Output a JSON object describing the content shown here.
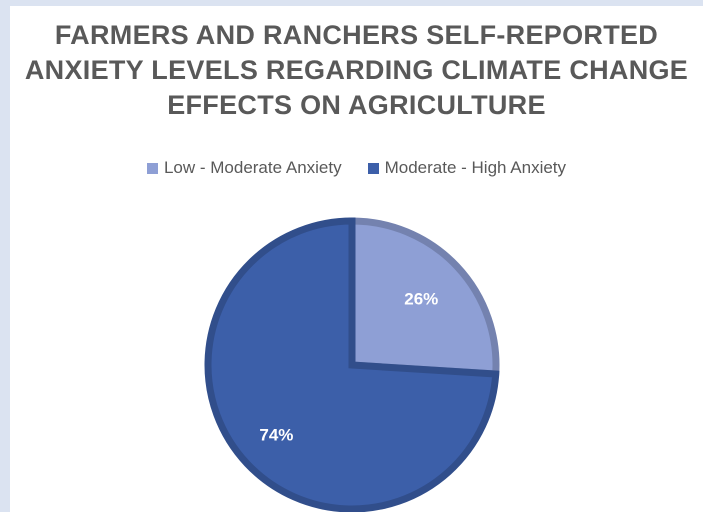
{
  "chart_data": {
    "type": "pie",
    "title_lines": [
      "FARMERS AND RANCHERS SELF-REPORTED",
      "ANXIETY LEVELS REGARDING CLIMATE CHANGE",
      "EFFECTS ON AGRICULTURE"
    ],
    "legend_position": "top",
    "slices": [
      {
        "name": "Low - Moderate Anxiety",
        "value": 26,
        "label": "26%",
        "color": "#8e9fd5"
      },
      {
        "name": "Moderate - High Anxiety",
        "value": 74,
        "label": "74%",
        "color": "#3c5fa9"
      }
    ]
  }
}
